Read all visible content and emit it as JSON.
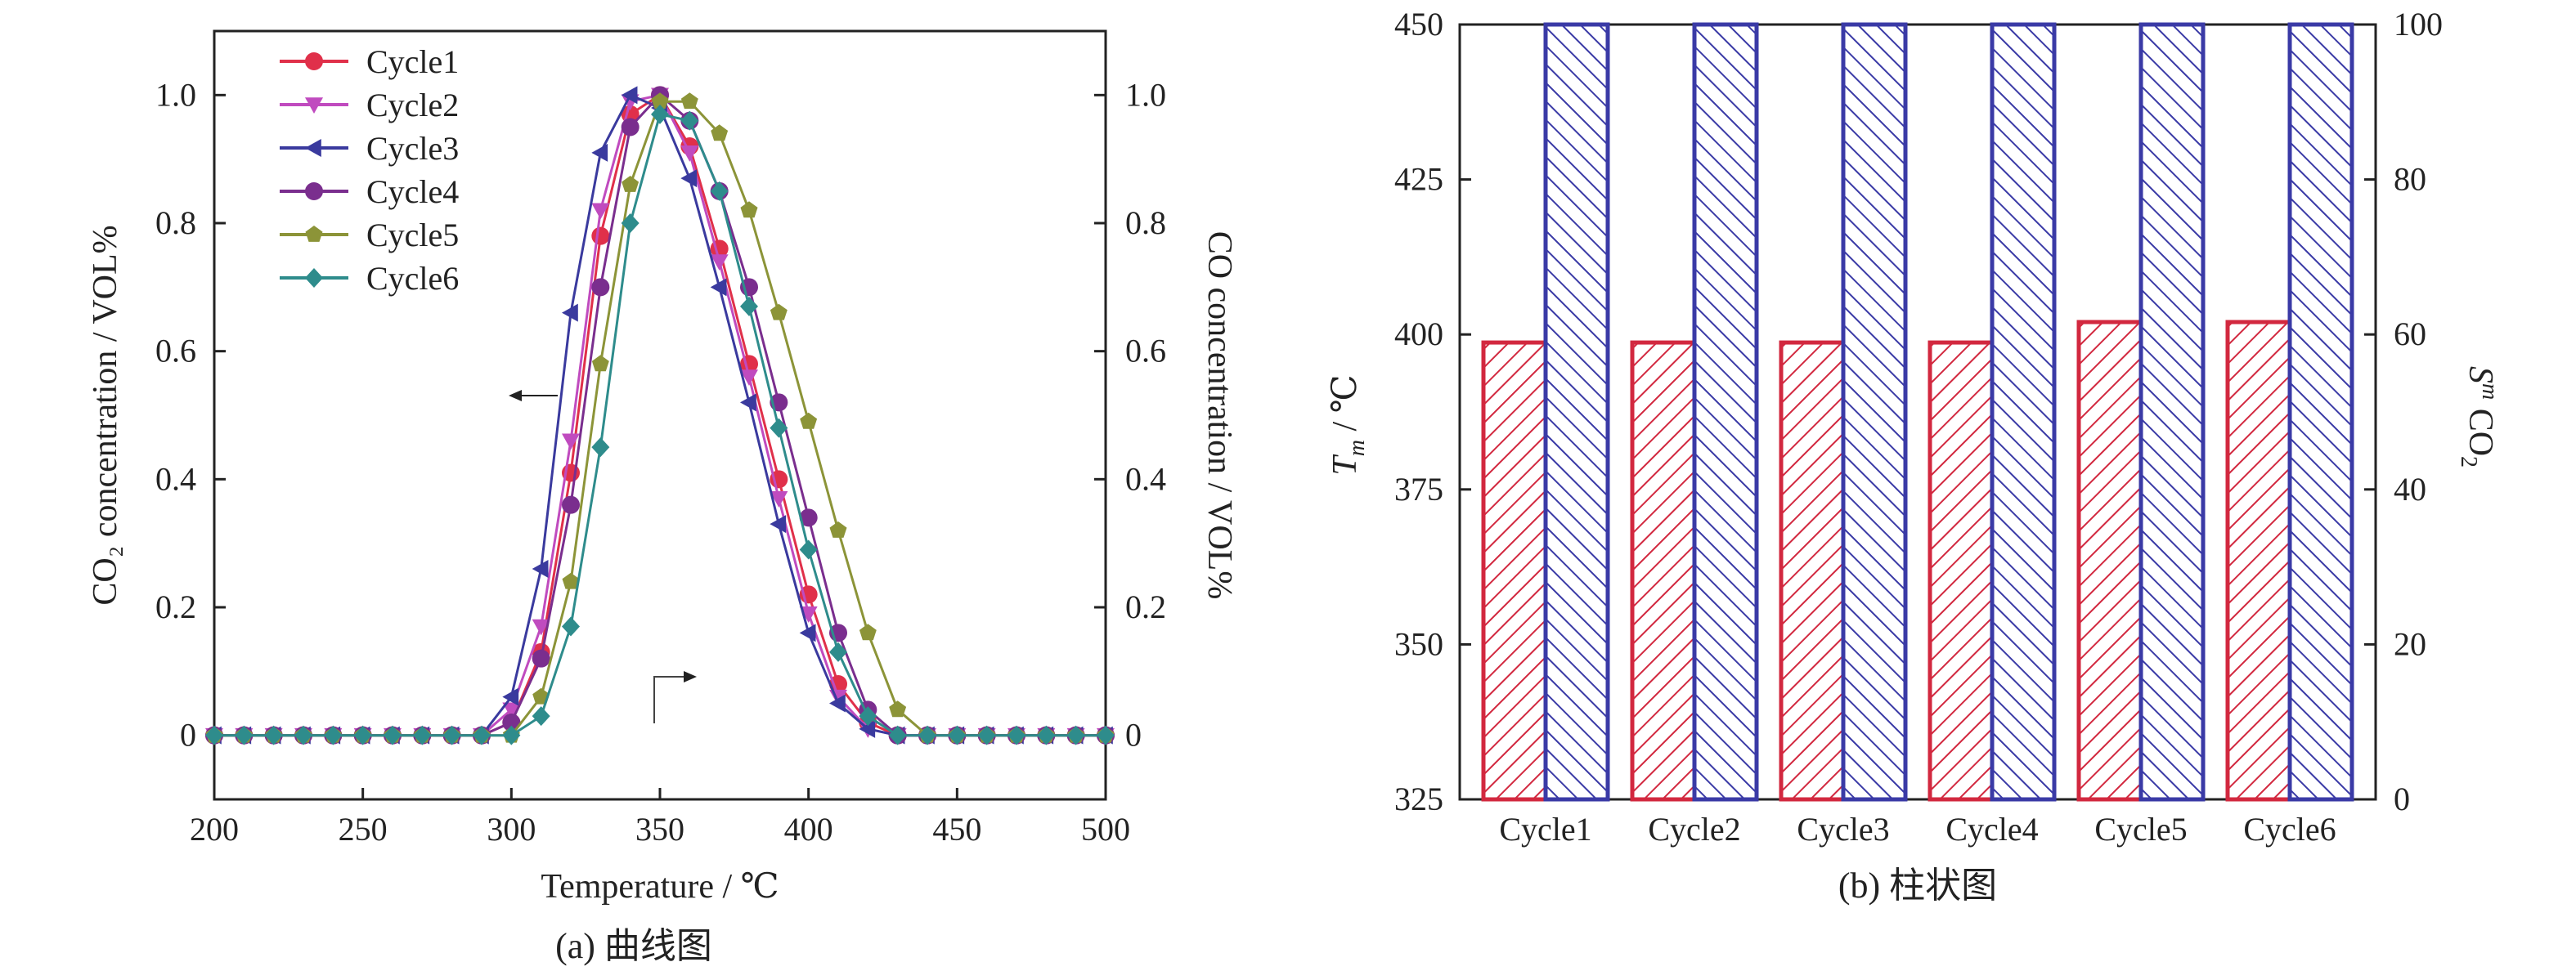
{
  "chart_data": [
    {
      "type": "line",
      "caption": "(a) 曲线图",
      "xlabel": "Temperature / ℃",
      "ylabel_left": "CO₂ concentration / VOL%",
      "ylabel_right": "CO concentration / VOL%",
      "xlim": [
        200,
        500
      ],
      "ylim": [
        -0.1,
        1.1
      ],
      "x_ticks": [
        200,
        250,
        300,
        350,
        400,
        450,
        500
      ],
      "x_tick_labels": [
        "200",
        "250",
        "300",
        "350",
        "400",
        "450",
        "500"
      ],
      "y_ticks": [
        0,
        0.2,
        0.4,
        0.6,
        0.8,
        1.0
      ],
      "y_tick_labels": [
        "0",
        "0.2",
        "0.4",
        "0.6",
        "0.8",
        "1.0"
      ],
      "grid": false,
      "legend": "top-left",
      "series": [
        {
          "name": "Cycle1",
          "color": "#e0304a",
          "marker": "circle",
          "x": [
            290,
            300,
            310,
            320,
            330,
            340,
            350,
            360,
            370,
            380,
            390,
            400,
            410,
            420,
            430
          ],
          "y": [
            0,
            0.02,
            0.13,
            0.41,
            0.78,
            0.97,
            1.0,
            0.92,
            0.76,
            0.58,
            0.4,
            0.22,
            0.08,
            0.02,
            0
          ]
        },
        {
          "name": "Cycle2",
          "color": "#c04bbf",
          "marker": "triangle-down",
          "x": [
            290,
            300,
            310,
            320,
            330,
            340,
            350,
            360,
            370,
            380,
            390,
            400,
            410,
            420,
            430
          ],
          "y": [
            0,
            0.04,
            0.17,
            0.46,
            0.82,
            0.99,
            1.0,
            0.91,
            0.74,
            0.56,
            0.37,
            0.19,
            0.06,
            0.01,
            0
          ]
        },
        {
          "name": "Cycle3",
          "color": "#3a3a9e",
          "marker": "triangle-left",
          "x": [
            290,
            300,
            310,
            320,
            330,
            340,
            350,
            360,
            370,
            380,
            390,
            400,
            410,
            420,
            430
          ],
          "y": [
            0,
            0.06,
            0.26,
            0.66,
            0.91,
            1.0,
            0.98,
            0.87,
            0.7,
            0.52,
            0.33,
            0.16,
            0.05,
            0.01,
            0
          ]
        },
        {
          "name": "Cycle4",
          "color": "#7a2e8e",
          "marker": "circle",
          "x": [
            290,
            300,
            310,
            320,
            330,
            340,
            350,
            360,
            370,
            380,
            390,
            400,
            410,
            420,
            430,
            440
          ],
          "y": [
            0,
            0.02,
            0.12,
            0.36,
            0.7,
            0.95,
            1.0,
            0.96,
            0.85,
            0.7,
            0.52,
            0.34,
            0.16,
            0.04,
            0,
            0
          ]
        },
        {
          "name": "Cycle5",
          "color": "#8c9438",
          "marker": "pentagon",
          "x": [
            300,
            310,
            320,
            330,
            340,
            350,
            360,
            370,
            380,
            390,
            400,
            410,
            420,
            430,
            440
          ],
          "y": [
            0,
            0.06,
            0.24,
            0.58,
            0.86,
            0.99,
            0.99,
            0.94,
            0.82,
            0.66,
            0.49,
            0.32,
            0.16,
            0.04,
            0
          ]
        },
        {
          "name": "Cycle6",
          "color": "#2e8c8c",
          "marker": "diamond",
          "x": [
            300,
            310,
            320,
            330,
            340,
            350,
            360,
            370,
            380,
            390,
            400,
            410,
            420,
            430
          ],
          "y": [
            0,
            0.03,
            0.17,
            0.45,
            0.8,
            0.97,
            0.96,
            0.85,
            0.67,
            0.48,
            0.29,
            0.13,
            0.03,
            0
          ]
        }
      ],
      "annotations": [
        "arrow pointing left (CO₂ axis)",
        "arrow pointing right (CO axis)"
      ]
    },
    {
      "type": "bar",
      "caption": "(b) 柱状图",
      "categories": [
        "Cycle1",
        "Cycle2",
        "Cycle3",
        "Cycle4",
        "Cycle5",
        "Cycle6"
      ],
      "ylabel_left": "Tm / ℃",
      "ylabel_right": "Sm CO₂",
      "ylim_left": [
        325,
        450
      ],
      "ylim_right": [
        0,
        100
      ],
      "y_ticks_left": [
        325,
        350,
        375,
        400,
        425,
        450
      ],
      "y_tick_labels_left": [
        "325",
        "350",
        "375",
        "400",
        "425",
        "450"
      ],
      "y_ticks_right": [
        0,
        20,
        40,
        60,
        80,
        100
      ],
      "y_tick_labels_right": [
        "0",
        "20",
        "40",
        "60",
        "80",
        "100"
      ],
      "grid": false,
      "series": [
        {
          "name": "Tm",
          "axis": "left",
          "color": "#d2283f",
          "hatch": "diagonal",
          "values": [
            398.7,
            398.7,
            398.7,
            398.7,
            402.0,
            402.0
          ]
        },
        {
          "name": "Sm CO₂",
          "axis": "right",
          "color": "#3a3aa6",
          "hatch": "diagonal-reverse",
          "values": [
            100,
            100,
            100,
            100,
            100,
            100
          ]
        }
      ]
    }
  ]
}
